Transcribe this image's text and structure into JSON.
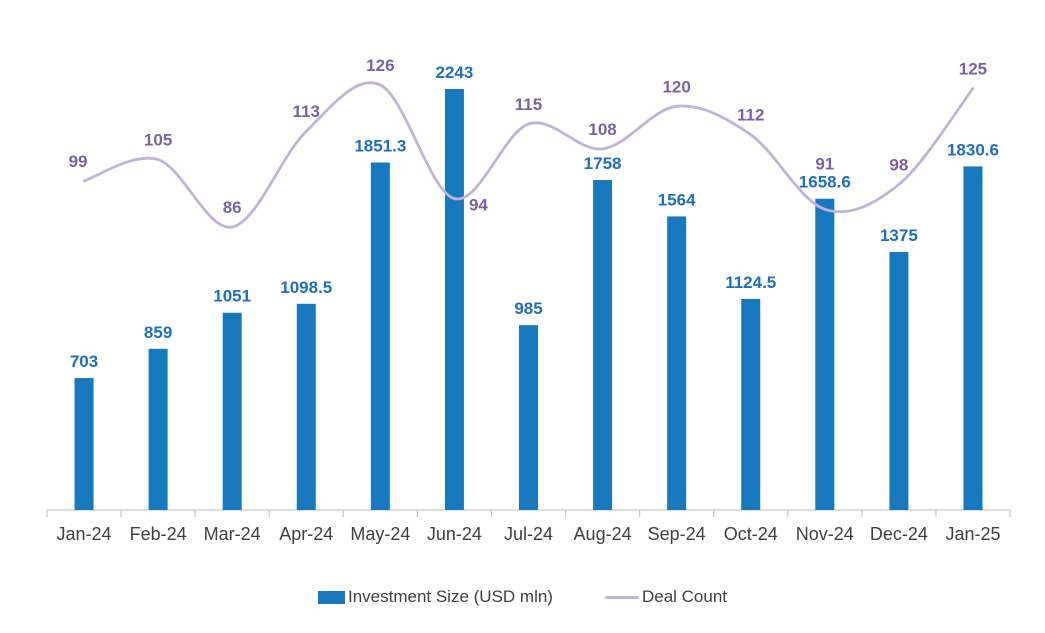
{
  "chart_data": {
    "type": "bar",
    "title": "",
    "xlabel": "",
    "ylabel": "",
    "categories": [
      "Jan-24",
      "Feb-24",
      "Mar-24",
      "Apr-24",
      "May-24",
      "Jun-24",
      "Jul-24",
      "Aug-24",
      "Sep-24",
      "Oct-24",
      "Nov-24",
      "Dec-24",
      "Jan-25"
    ],
    "series": [
      {
        "name": "Investment Size (USD mln)",
        "type": "bar",
        "color": "#1878BE",
        "label_color": "#1E6FC0",
        "values": [
          703,
          859,
          1051,
          1098.5,
          1851.3,
          2243,
          985,
          1758,
          1564,
          1124.5,
          1658.6,
          1375,
          1830.6
        ]
      },
      {
        "name": "Deal Count",
        "type": "line",
        "color": "#C3B2D9",
        "label_color": "#7C61A6",
        "values": [
          99,
          105,
          86,
          113,
          126,
          94,
          115,
          108,
          120,
          112,
          91,
          98,
          125
        ]
      }
    ],
    "data_labels": true,
    "grid": false,
    "legend_position": "bottom",
    "axis_color": "#C9C9C9",
    "tick_label_color": "#3F3F3F"
  }
}
